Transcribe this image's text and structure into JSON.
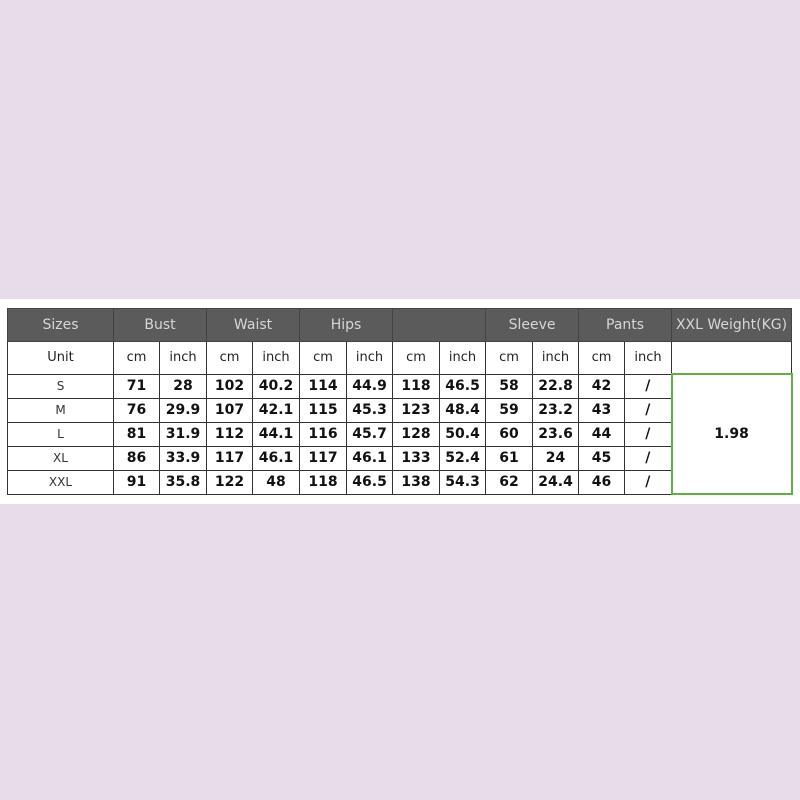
{
  "header": {
    "sizes": "Sizes",
    "groups": [
      "Bust",
      "Waist",
      "Hips",
      "",
      "Sleeve",
      "Pants"
    ],
    "weight": "XXL Weight(KG)"
  },
  "units": {
    "label": "Unit",
    "cm": "cm",
    "inch": "inch"
  },
  "rows": [
    {
      "size": "S",
      "values": [
        "71",
        "28",
        "102",
        "40.2",
        "114",
        "44.9",
        "118",
        "46.5",
        "58",
        "22.8",
        "42",
        "/"
      ]
    },
    {
      "size": "M",
      "values": [
        "76",
        "29.9",
        "107",
        "42.1",
        "115",
        "45.3",
        "123",
        "48.4",
        "59",
        "23.2",
        "43",
        "/"
      ]
    },
    {
      "size": "L",
      "values": [
        "81",
        "31.9",
        "112",
        "44.1",
        "116",
        "45.7",
        "128",
        "50.4",
        "60",
        "23.6",
        "44",
        "/"
      ]
    },
    {
      "size": "XL",
      "values": [
        "86",
        "33.9",
        "117",
        "46.1",
        "117",
        "46.1",
        "133",
        "52.4",
        "61",
        "24",
        "45",
        "/"
      ]
    },
    {
      "size": "XXL",
      "values": [
        "91",
        "35.8",
        "122",
        "48",
        "118",
        "46.5",
        "138",
        "54.3",
        "62",
        "24.4",
        "46",
        "/"
      ]
    }
  ],
  "weight_value": "1.98",
  "colors": {
    "header_bg": "#5b5b5b",
    "background": "#e7dcea",
    "highlight_border": "#5fae4a"
  }
}
